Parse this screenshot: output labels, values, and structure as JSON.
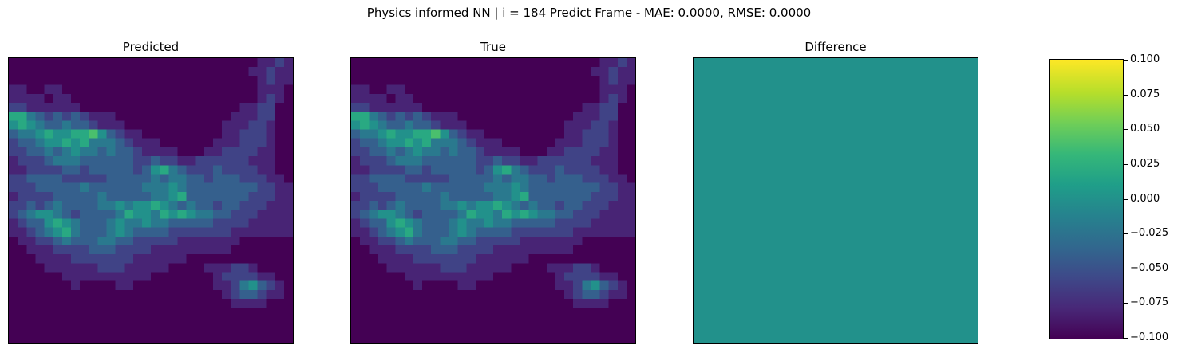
{
  "figure": {
    "suptitle": "Physics informed NN | i = 184 Predict Frame - MAE: 0.0000, RMSE: 0.0000",
    "panels": [
      {
        "title": "Predicted"
      },
      {
        "title": "True"
      },
      {
        "title": "Difference"
      }
    ],
    "colorbar": {
      "colormap": "viridis",
      "ticks": [
        "0.100",
        "0.075",
        "0.050",
        "0.025",
        "0.000",
        "−0.025",
        "−0.050",
        "−0.075",
        "−0.100"
      ]
    }
  },
  "chart_data": [
    {
      "type": "heatmap",
      "title": "Predicted",
      "colormap": "viridis",
      "grid_size": [
        32,
        32
      ],
      "description_rows_top_to_bottom": [
        [
          0,
          0,
          0,
          0,
          0,
          0,
          0,
          0,
          0,
          0,
          0,
          0,
          0,
          0,
          0,
          0,
          0,
          0,
          0,
          0,
          0,
          0,
          0,
          0,
          0,
          0,
          0,
          0,
          1,
          1,
          2,
          1
        ],
        [
          0,
          0,
          0,
          0,
          0,
          0,
          0,
          0,
          0,
          0,
          0,
          0,
          0,
          0,
          0,
          0,
          0,
          0,
          0,
          0,
          0,
          0,
          0,
          0,
          0,
          0,
          0,
          1,
          1,
          2,
          1,
          1
        ],
        [
          0,
          0,
          0,
          0,
          0,
          0,
          0,
          0,
          0,
          0,
          0,
          0,
          0,
          0,
          0,
          0,
          0,
          0,
          0,
          0,
          0,
          0,
          0,
          0,
          0,
          0,
          0,
          0,
          1,
          2,
          1,
          1
        ],
        [
          1,
          1,
          0,
          0,
          1,
          1,
          0,
          0,
          0,
          0,
          0,
          0,
          0,
          0,
          0,
          0,
          0,
          0,
          0,
          0,
          0,
          0,
          0,
          0,
          0,
          0,
          0,
          0,
          1,
          1,
          1,
          0
        ],
        [
          1,
          1,
          1,
          1,
          0,
          1,
          1,
          0,
          0,
          0,
          0,
          0,
          0,
          0,
          0,
          0,
          0,
          0,
          0,
          0,
          0,
          0,
          0,
          0,
          0,
          0,
          0,
          0,
          1,
          2,
          1,
          0
        ],
        [
          2,
          2,
          1,
          1,
          1,
          1,
          1,
          1,
          0,
          0,
          0,
          0,
          0,
          0,
          0,
          0,
          0,
          0,
          0,
          0,
          0,
          0,
          0,
          0,
          0,
          0,
          1,
          1,
          2,
          2,
          0,
          0
        ],
        [
          6,
          6,
          4,
          3,
          2,
          3,
          2,
          3,
          2,
          1,
          1,
          1,
          0,
          0,
          0,
          0,
          0,
          0,
          0,
          0,
          0,
          0,
          0,
          0,
          0,
          1,
          1,
          1,
          2,
          2,
          0,
          0
        ],
        [
          5,
          6,
          5,
          4,
          3,
          3,
          4,
          3,
          3,
          2,
          1,
          1,
          1,
          0,
          0,
          0,
          0,
          0,
          0,
          0,
          0,
          0,
          0,
          0,
          1,
          1,
          1,
          2,
          2,
          1,
          0,
          0
        ],
        [
          3,
          4,
          4,
          5,
          6,
          5,
          5,
          6,
          6,
          7,
          5,
          3,
          2,
          1,
          1,
          0,
          0,
          0,
          0,
          0,
          0,
          0,
          0,
          0,
          1,
          1,
          2,
          2,
          2,
          1,
          0,
          0
        ],
        [
          2,
          3,
          3,
          4,
          5,
          5,
          6,
          5,
          6,
          4,
          4,
          4,
          3,
          2,
          1,
          1,
          1,
          0,
          0,
          0,
          0,
          0,
          0,
          1,
          1,
          1,
          2,
          2,
          2,
          1,
          0,
          0
        ],
        [
          2,
          2,
          3,
          3,
          4,
          3,
          4,
          5,
          4,
          4,
          3,
          4,
          3,
          3,
          2,
          1,
          1,
          1,
          1,
          0,
          0,
          0,
          1,
          1,
          2,
          2,
          2,
          2,
          1,
          1,
          0,
          0
        ],
        [
          1,
          2,
          2,
          2,
          3,
          4,
          4,
          4,
          3,
          3,
          3,
          3,
          3,
          3,
          2,
          2,
          3,
          2,
          2,
          1,
          1,
          2,
          2,
          2,
          2,
          2,
          2,
          1,
          1,
          1,
          0,
          0
        ],
        [
          1,
          1,
          2,
          2,
          2,
          2,
          3,
          3,
          2,
          3,
          3,
          3,
          3,
          3,
          2,
          3,
          5,
          6,
          4,
          3,
          2,
          2,
          2,
          3,
          2,
          2,
          2,
          2,
          1,
          1,
          0,
          0
        ],
        [
          2,
          2,
          3,
          3,
          3,
          3,
          2,
          2,
          2,
          2,
          2,
          3,
          3,
          3,
          3,
          3,
          4,
          3,
          4,
          4,
          3,
          3,
          2,
          3,
          3,
          3,
          2,
          2,
          2,
          1,
          1,
          0
        ],
        [
          2,
          2,
          2,
          3,
          3,
          3,
          3,
          3,
          4,
          3,
          3,
          3,
          3,
          3,
          3,
          4,
          4,
          4,
          5,
          4,
          3,
          3,
          3,
          3,
          3,
          3,
          3,
          3,
          2,
          2,
          1,
          1
        ],
        [
          1,
          2,
          2,
          2,
          2,
          3,
          3,
          3,
          3,
          3,
          4,
          3,
          3,
          3,
          3,
          3,
          4,
          4,
          5,
          6,
          3,
          3,
          3,
          3,
          3,
          3,
          3,
          2,
          2,
          2,
          1,
          1
        ],
        [
          2,
          2,
          3,
          2,
          3,
          4,
          3,
          3,
          3,
          3,
          4,
          4,
          5,
          4,
          5,
          5,
          6,
          5,
          4,
          3,
          4,
          3,
          3,
          2,
          3,
          3,
          2,
          2,
          2,
          1,
          1,
          1
        ],
        [
          2,
          3,
          4,
          5,
          5,
          4,
          3,
          2,
          3,
          3,
          3,
          3,
          4,
          6,
          5,
          5,
          4,
          6,
          5,
          6,
          5,
          4,
          4,
          3,
          3,
          2,
          2,
          2,
          1,
          1,
          1,
          1
        ],
        [
          1,
          2,
          3,
          3,
          5,
          6,
          5,
          4,
          3,
          3,
          3,
          4,
          5,
          4,
          4,
          5,
          4,
          4,
          3,
          3,
          3,
          3,
          3,
          2,
          2,
          2,
          2,
          1,
          1,
          1,
          1,
          1
        ],
        [
          1,
          1,
          2,
          3,
          4,
          5,
          6,
          4,
          3,
          3,
          3,
          4,
          5,
          4,
          3,
          3,
          3,
          3,
          2,
          2,
          2,
          2,
          2,
          2,
          2,
          1,
          1,
          1,
          1,
          1,
          1,
          1
        ],
        [
          0,
          1,
          1,
          2,
          2,
          3,
          4,
          3,
          3,
          3,
          4,
          4,
          3,
          3,
          2,
          2,
          2,
          2,
          2,
          1,
          1,
          1,
          1,
          1,
          1,
          1,
          0,
          0,
          0,
          0,
          0,
          0
        ],
        [
          0,
          0,
          1,
          1,
          1,
          2,
          2,
          2,
          2,
          3,
          3,
          3,
          2,
          2,
          2,
          2,
          1,
          1,
          1,
          1,
          1,
          1,
          1,
          1,
          1,
          0,
          0,
          0,
          0,
          0,
          0,
          0
        ],
        [
          0,
          0,
          0,
          1,
          1,
          1,
          1,
          2,
          2,
          2,
          2,
          2,
          2,
          2,
          1,
          1,
          1,
          1,
          1,
          1,
          0,
          0,
          0,
          0,
          0,
          0,
          0,
          0,
          0,
          0,
          0,
          0
        ],
        [
          0,
          0,
          0,
          0,
          1,
          1,
          1,
          1,
          1,
          1,
          2,
          2,
          2,
          1,
          1,
          1,
          1,
          1,
          0,
          0,
          0,
          0,
          1,
          1,
          1,
          2,
          2,
          1,
          0,
          0,
          0,
          0
        ],
        [
          0,
          0,
          0,
          0,
          0,
          0,
          1,
          1,
          1,
          1,
          1,
          1,
          1,
          1,
          1,
          1,
          0,
          0,
          0,
          0,
          0,
          0,
          0,
          1,
          2,
          2,
          2,
          2,
          1,
          1,
          0,
          0
        ],
        [
          0,
          0,
          0,
          0,
          0,
          0,
          0,
          1,
          0,
          0,
          0,
          0,
          1,
          1,
          0,
          0,
          0,
          0,
          0,
          0,
          0,
          0,
          0,
          1,
          1,
          2,
          4,
          5,
          3,
          2,
          1,
          0
        ],
        [
          0,
          0,
          0,
          0,
          0,
          0,
          0,
          0,
          0,
          0,
          0,
          0,
          0,
          0,
          0,
          0,
          0,
          0,
          0,
          0,
          0,
          0,
          0,
          0,
          1,
          2,
          3,
          3,
          2,
          1,
          1,
          0
        ],
        [
          0,
          0,
          0,
          0,
          0,
          0,
          0,
          0,
          0,
          0,
          0,
          0,
          0,
          0,
          0,
          0,
          0,
          0,
          0,
          0,
          0,
          0,
          0,
          0,
          0,
          1,
          1,
          1,
          1,
          0,
          0,
          0
        ],
        [
          0,
          0,
          0,
          0,
          0,
          0,
          0,
          0,
          0,
          0,
          0,
          0,
          0,
          0,
          0,
          0,
          0,
          0,
          0,
          0,
          0,
          0,
          0,
          0,
          0,
          0,
          0,
          0,
          0,
          0,
          0,
          0
        ],
        [
          0,
          0,
          0,
          0,
          0,
          0,
          0,
          0,
          0,
          0,
          0,
          0,
          0,
          0,
          0,
          0,
          0,
          0,
          0,
          0,
          0,
          0,
          0,
          0,
          0,
          0,
          0,
          0,
          0,
          0,
          0,
          0
        ],
        [
          0,
          0,
          0,
          0,
          0,
          0,
          0,
          0,
          0,
          0,
          0,
          0,
          0,
          0,
          0,
          0,
          0,
          0,
          0,
          0,
          0,
          0,
          0,
          0,
          0,
          0,
          0,
          0,
          0,
          0,
          0,
          0
        ],
        [
          0,
          0,
          0,
          0,
          0,
          0,
          0,
          0,
          0,
          0,
          0,
          0,
          0,
          0,
          0,
          0,
          0,
          0,
          0,
          0,
          0,
          0,
          0,
          0,
          0,
          0,
          0,
          0,
          0,
          0,
          0,
          0
        ]
      ],
      "value_scale_max": 10
    },
    {
      "type": "heatmap",
      "title": "True",
      "colormap": "viridis",
      "same_as": "Predicted"
    },
    {
      "type": "heatmap",
      "title": "Difference",
      "colormap": "viridis",
      "uniform_value": 0.0,
      "colorbar_range": [
        -0.1,
        0.1
      ],
      "colorbar_ticks": [
        0.1,
        0.075,
        0.05,
        0.025,
        0.0,
        -0.025,
        -0.05,
        -0.075,
        -0.1
      ]
    }
  ]
}
